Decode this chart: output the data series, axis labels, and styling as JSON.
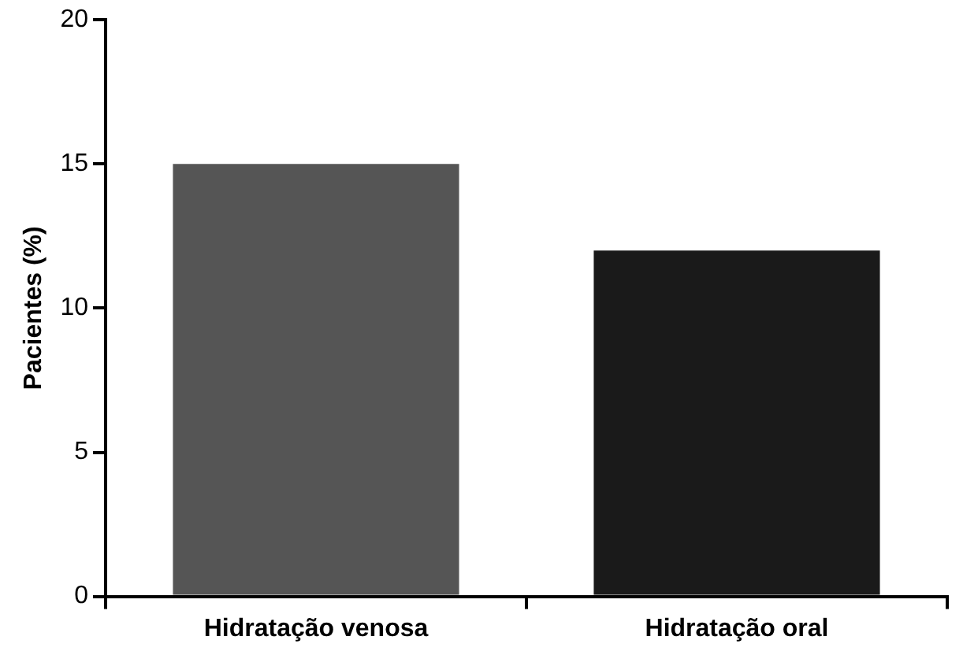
{
  "chart_data": {
    "type": "bar",
    "ylabel": "Pacientes (%)",
    "categories": [
      "Hidratação venosa",
      "Hidratação oral"
    ],
    "values": [
      15,
      12
    ],
    "colors": [
      "#555555",
      "#1a1a1a"
    ],
    "ylim": [
      0,
      20
    ],
    "yticks": [
      0,
      5,
      10,
      15,
      20
    ],
    "grid": false,
    "legend": false
  }
}
